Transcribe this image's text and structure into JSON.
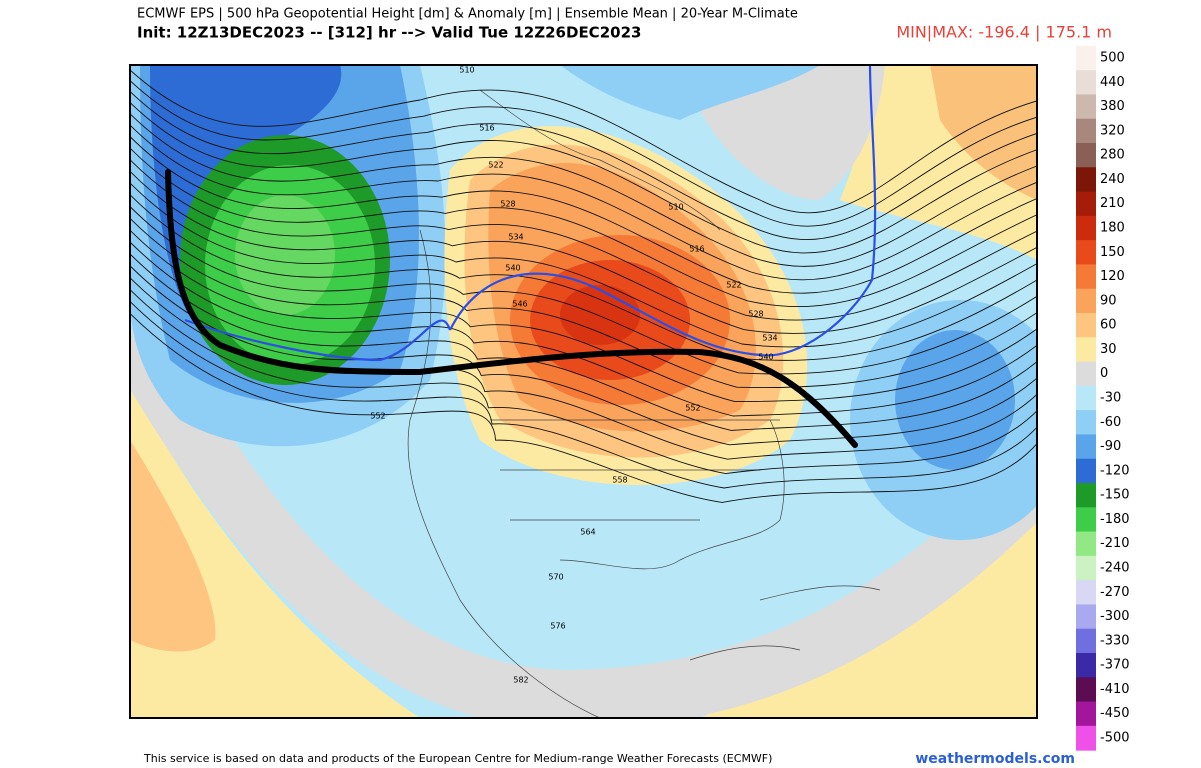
{
  "header": {
    "title": "ECMWF EPS | 500 hPa Geopotential Height [dm] & Anomaly [m] | Ensemble Mean | 20-Year M-Climate",
    "subtitle": "Init: 12Z13DEC2023 -- [312] hr --> Valid Tue 12Z26DEC2023",
    "minmax": "MIN|MAX: -196.4 | 175.1 m"
  },
  "legend": {
    "levels": [
      {
        "value": 500,
        "color": "#fbf1ec"
      },
      {
        "value": 440,
        "color": "#e9ddd7"
      },
      {
        "value": 380,
        "color": "#cdb8ae"
      },
      {
        "value": 320,
        "color": "#a8877d"
      },
      {
        "value": 280,
        "color": "#8a5f55"
      },
      {
        "value": 240,
        "color": "#7c1608"
      },
      {
        "value": 210,
        "color": "#a51d09"
      },
      {
        "value": 180,
        "color": "#cc2b0e"
      },
      {
        "value": 150,
        "color": "#e84a1b"
      },
      {
        "value": 120,
        "color": "#f57a36"
      },
      {
        "value": 90,
        "color": "#faa35a"
      },
      {
        "value": 60,
        "color": "#fdc57f"
      },
      {
        "value": 30,
        "color": "#fdeaa2"
      },
      {
        "value": 0,
        "color": "#dcdcdc"
      },
      {
        "value": -30,
        "color": "#b8e8f8"
      },
      {
        "value": -60,
        "color": "#8fcff5"
      },
      {
        "value": -90,
        "color": "#5aa5ea"
      },
      {
        "value": -120,
        "color": "#2c6cd4"
      },
      {
        "value": -150,
        "color": "#1d9a28"
      },
      {
        "value": -180,
        "color": "#3dcd48"
      },
      {
        "value": -210,
        "color": "#92e884"
      },
      {
        "value": -240,
        "color": "#ccf2c4"
      },
      {
        "value": -270,
        "color": "#d8d8f5"
      },
      {
        "value": -300,
        "color": "#a9a9ef"
      },
      {
        "value": -330,
        "color": "#6f6fe0"
      },
      {
        "value": -370,
        "color": "#3a2aa8"
      },
      {
        "value": -410,
        "color": "#5c0c52"
      },
      {
        "value": -450,
        "color": "#a3169c"
      },
      {
        "value": -500,
        "color": "#ee50e8"
      }
    ]
  },
  "map": {
    "contour_labels": [
      "510",
      "516",
      "522",
      "528",
      "534",
      "540",
      "546",
      "552",
      "558",
      "564",
      "570",
      "576",
      "582",
      "510",
      "516",
      "522",
      "528",
      "534",
      "540",
      "552"
    ]
  },
  "footer": {
    "notice": "This service is based on data and products of the European Centre for Medium-range Weather Forecasts (ECMWF)",
    "site": "weathermodels.com"
  }
}
